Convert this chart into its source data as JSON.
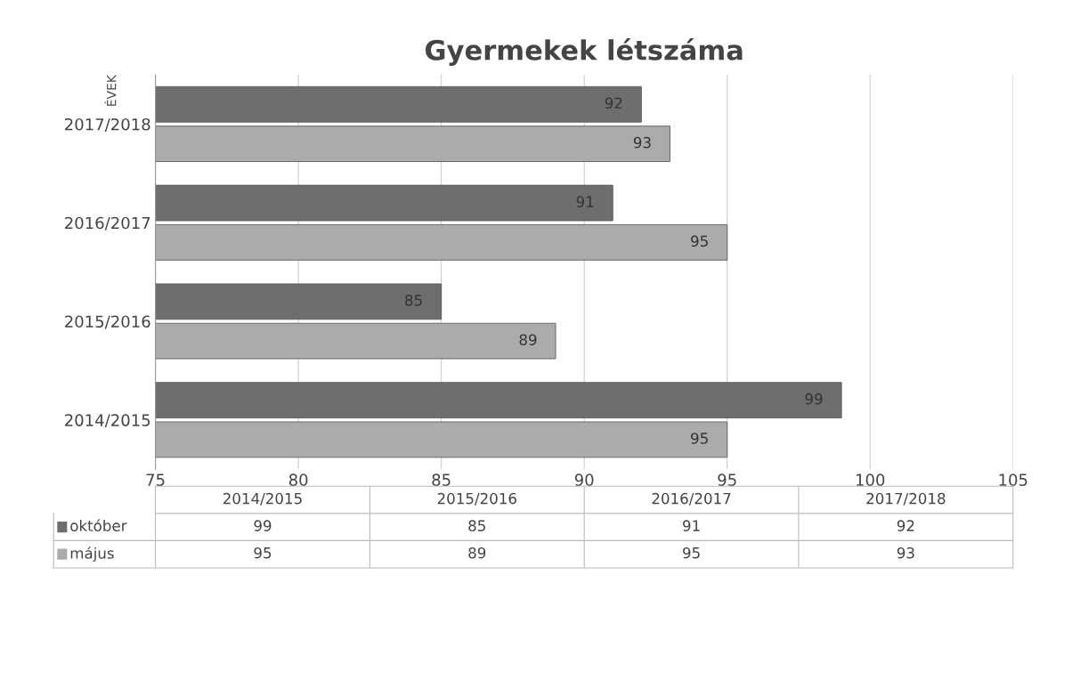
{
  "chart_data": {
    "type": "bar",
    "orientation": "horizontal",
    "title": "Gyermekek létszáma",
    "ylabel": "ÉVEK",
    "categories": [
      "2017/2018",
      "2016/2017",
      "2015/2016",
      "2014/2015"
    ],
    "series": [
      {
        "name": "október",
        "color": "#6e6e6e",
        "values": [
          92,
          91,
          85,
          99
        ]
      },
      {
        "name": "május",
        "color": "#ababab",
        "values": [
          93,
          95,
          89,
          95
        ]
      }
    ],
    "annotations": [
      "99",
      "85",
      "91",
      "92",
      "95",
      "89",
      "95",
      "93"
    ],
    "xlim": [
      75,
      105
    ],
    "xticks": [
      75,
      80,
      85,
      90,
      95,
      100,
      105
    ],
    "grid": "x",
    "data_labels": true,
    "legend": "bottom"
  }
}
